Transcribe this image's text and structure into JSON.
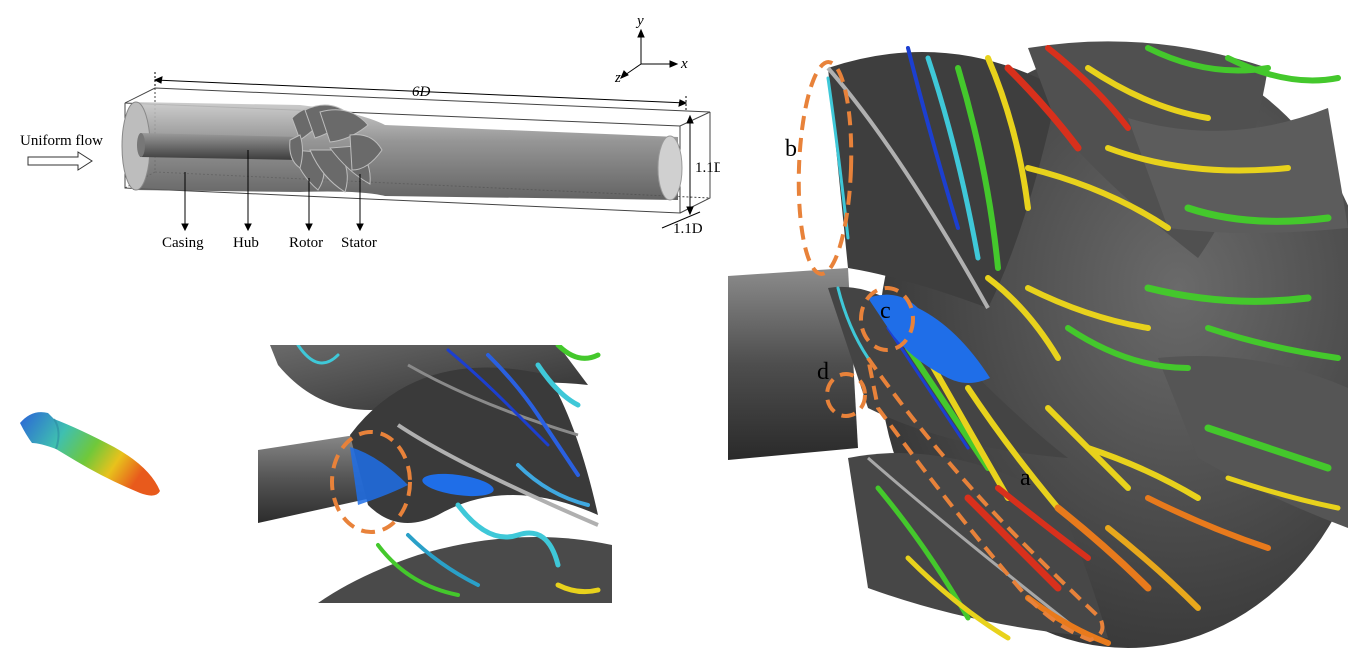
{
  "schematic": {
    "inflow_label": "Uniform flow",
    "length_label": "6D",
    "height_label": "1.1D",
    "depth_label": "1.1D",
    "axis_x": "x",
    "axis_y": "y",
    "axis_z": "z",
    "parts": [
      "Casing",
      "Hub",
      "Rotor",
      "Stator"
    ]
  },
  "annotations": {
    "main": [
      "a",
      "b",
      "c",
      "d"
    ]
  },
  "colors": {
    "highlight": "#e8823a",
    "body_gray": "#5a5a5a",
    "vortex_blue": "#1c3fd0",
    "vortex_cyan": "#3fc8d8",
    "vortex_green": "#44c82c",
    "vortex_yellow": "#e8d21c",
    "vortex_red": "#d8301c"
  }
}
